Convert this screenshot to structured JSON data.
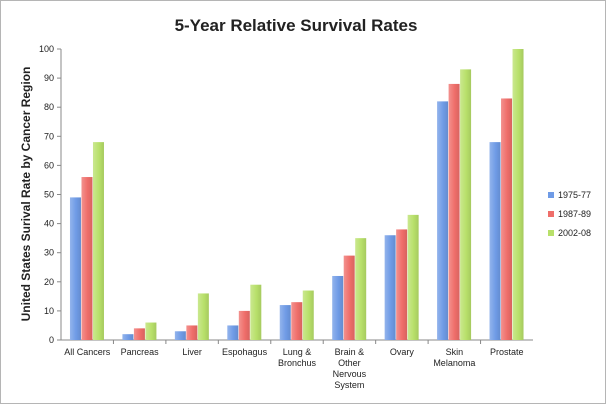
{
  "chart_data": {
    "type": "bar",
    "title": "5-Year Relative Survival Rates",
    "xlabel": "",
    "ylabel": "United States Surival Rate by Cancer Region",
    "ylim": [
      0,
      100
    ],
    "yticks": [
      0,
      10,
      20,
      30,
      40,
      50,
      60,
      70,
      80,
      90,
      100
    ],
    "grid": false,
    "legend_position": "right",
    "categories": [
      [
        "All Cancers"
      ],
      [
        "Pancreas"
      ],
      [
        "Liver"
      ],
      [
        "Espohagus"
      ],
      [
        "Lung &",
        "Bronchus"
      ],
      [
        "Brain &",
        "Other",
        "Nervous",
        "System"
      ],
      [
        "Ovary"
      ],
      [
        "Skin",
        "Melanoma"
      ],
      [
        "Prostate"
      ]
    ],
    "series": [
      {
        "name": "1975-77",
        "color": "#6f9be6",
        "values": [
          49,
          2,
          3,
          5,
          12,
          22,
          36,
          82,
          68
        ]
      },
      {
        "name": "1987-89",
        "color": "#ef6e6a",
        "values": [
          56,
          4,
          5,
          10,
          13,
          29,
          38,
          88,
          83
        ]
      },
      {
        "name": "2002-08",
        "color": "#b8e06a",
        "values": [
          68,
          6,
          16,
          19,
          17,
          35,
          43,
          93,
          100
        ]
      }
    ]
  }
}
